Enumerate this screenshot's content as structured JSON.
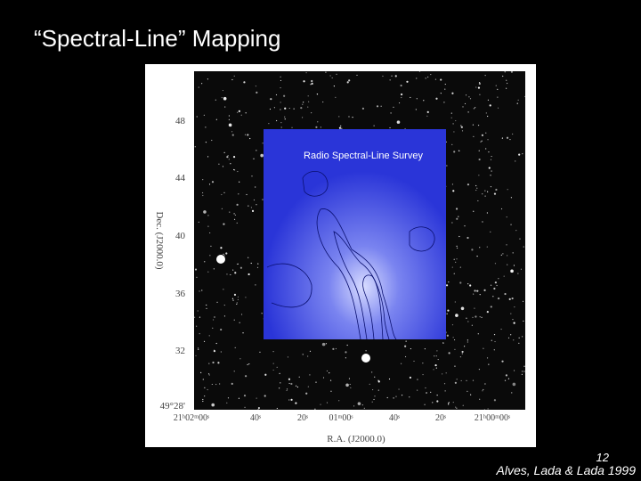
{
  "header": {
    "title": "“Spectral-Line” Mapping"
  },
  "figure": {
    "overlay_label": "Radio Spectral-Line Survey",
    "y_axis_label": "Dec. (J2000.0)",
    "x_axis_label": "R.A. (J2000.0)",
    "y_tick_labels": [
      "48",
      "44",
      "40",
      "36",
      "32",
      "49°28'"
    ],
    "x_tick_labels": [
      "21ʰ02ᵐ00ˢ",
      "40ˢ",
      "20ˢ",
      "01ᵐ00ˢ",
      "40ˢ",
      "20ˢ",
      "21ʰ00ᵐ00ˢ"
    ]
  },
  "footer": {
    "page_number": "12",
    "citation": "Alves, Lada & Lada 1999"
  }
}
